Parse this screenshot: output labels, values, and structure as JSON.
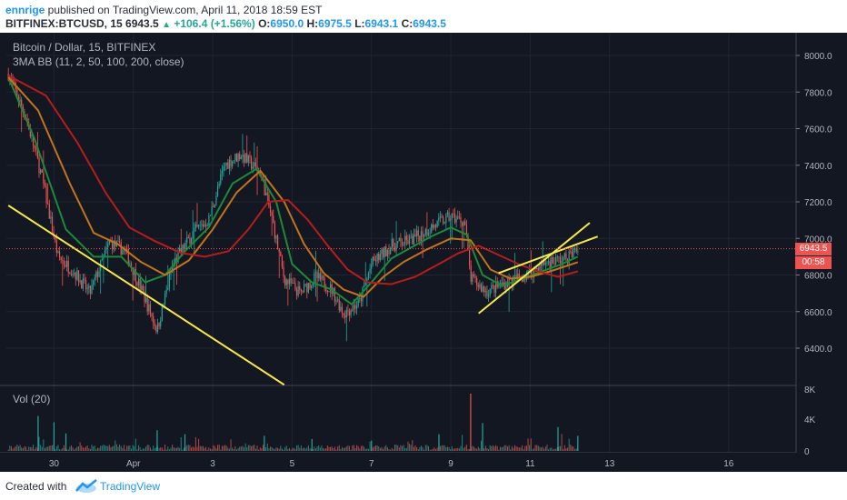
{
  "header": {
    "author": "ennrige",
    "published_text": " published on TradingView.com, April 11, 2018 18:59 EST",
    "symbol": "BITFINEX:BTCUSD, 15",
    "last_price": "6943.5",
    "change": "+106.4 (+1.56%)",
    "open_label": "O:",
    "open_value": "6950.0",
    "high_label": "H:",
    "high_value": "6975.5",
    "low_label": "L:",
    "low_value": "6943.1",
    "close_label": "C:",
    "close_value": "6943.5"
  },
  "legend": {
    "title": "Bitcoin / Dollar, 15, BITFINEX",
    "indicator": "3MA BB (11, 2, 50, 100, 200, close)",
    "volume": "Vol (20)"
  },
  "price_tag": {
    "value": "6943.5",
    "countdown": "00:58"
  },
  "footer": {
    "created_with": "Created with",
    "brand": "TradingView"
  },
  "colors": {
    "background": "#131722",
    "grid": "#1f2430",
    "up": "#26a69a",
    "down": "#ef5350",
    "ma_fast": "#1b8a3a",
    "ma_mid": "#c2741c",
    "ma_slow": "#b71c1c",
    "trendline": "#f5e94a",
    "price_line": "#ef5350"
  },
  "chart_data": {
    "type": "candlestick",
    "title": "Bitcoin / Dollar, 15, BITFINEX",
    "x_ticks": [
      "30",
      "Apr",
      "3",
      "5",
      "7",
      "9",
      "11",
      "13",
      "16"
    ],
    "x_tick_days": [
      30,
      32,
      34,
      36,
      38,
      40,
      42,
      44,
      47
    ],
    "x_range_days": [
      28.8,
      48.7
    ],
    "y_ticks": [
      "6400.0",
      "6600.0",
      "6800.0",
      "7000.0",
      "7200.0",
      "7400.0",
      "7600.0",
      "7800.0",
      "8000.0"
    ],
    "y_range": [
      6200,
      8050
    ],
    "volume_ticks": [
      "0",
      "4K",
      "8K"
    ],
    "volume_range": [
      0,
      8000
    ],
    "last_price": 6943.5,
    "price_path": [
      [
        28.85,
        7900
      ],
      [
        29.3,
        7660
      ],
      [
        29.7,
        7330
      ],
      [
        30.1,
        6900
      ],
      [
        30.5,
        6820
      ],
      [
        30.9,
        6700
      ],
      [
        31.4,
        6980
      ],
      [
        31.8,
        6930
      ],
      [
        32.2,
        6720
      ],
      [
        32.6,
        6500
      ],
      [
        33.0,
        6860
      ],
      [
        33.5,
        7030
      ],
      [
        33.9,
        7100
      ],
      [
        34.3,
        7400
      ],
      [
        34.7,
        7460
      ],
      [
        35.2,
        7360
      ],
      [
        35.5,
        7100
      ],
      [
        35.8,
        6780
      ],
      [
        36.2,
        6700
      ],
      [
        36.6,
        6790
      ],
      [
        37.0,
        6720
      ],
      [
        37.3,
        6590
      ],
      [
        37.7,
        6650
      ],
      [
        38.0,
        6860
      ],
      [
        38.5,
        6960
      ],
      [
        39.0,
        6990
      ],
      [
        39.5,
        7060
      ],
      [
        40.0,
        7120
      ],
      [
        40.35,
        7090
      ],
      [
        40.5,
        6780
      ],
      [
        40.9,
        6710
      ],
      [
        41.4,
        6760
      ],
      [
        41.9,
        6800
      ],
      [
        42.4,
        6870
      ],
      [
        42.9,
        6890
      ],
      [
        43.2,
        6943.5
      ]
    ],
    "series": [
      {
        "name": "MA 50",
        "color": "ma_fast",
        "points": [
          [
            28.85,
            7880
          ],
          [
            29.5,
            7550
          ],
          [
            30.3,
            7050
          ],
          [
            31.0,
            6900
          ],
          [
            31.7,
            6900
          ],
          [
            32.3,
            6760
          ],
          [
            32.8,
            6800
          ],
          [
            33.3,
            6930
          ],
          [
            33.9,
            7060
          ],
          [
            34.5,
            7300
          ],
          [
            35.1,
            7380
          ],
          [
            35.6,
            7200
          ],
          [
            36.0,
            6860
          ],
          [
            36.5,
            6760
          ],
          [
            37.0,
            6720
          ],
          [
            37.5,
            6640
          ],
          [
            38.0,
            6760
          ],
          [
            38.5,
            6890
          ],
          [
            39.0,
            6950
          ],
          [
            39.5,
            7010
          ],
          [
            40.0,
            7060
          ],
          [
            40.4,
            7020
          ],
          [
            40.8,
            6800
          ],
          [
            41.3,
            6740
          ],
          [
            41.8,
            6780
          ],
          [
            42.3,
            6820
          ],
          [
            42.8,
            6860
          ],
          [
            43.2,
            6900
          ]
        ]
      },
      {
        "name": "MA 100",
        "color": "ma_mid",
        "points": [
          [
            28.85,
            7880
          ],
          [
            29.6,
            7700
          ],
          [
            30.4,
            7300
          ],
          [
            31.0,
            7030
          ],
          [
            31.6,
            6970
          ],
          [
            32.2,
            6870
          ],
          [
            32.8,
            6800
          ],
          [
            33.4,
            6880
          ],
          [
            34.0,
            7050
          ],
          [
            34.6,
            7250
          ],
          [
            35.2,
            7370
          ],
          [
            35.8,
            7200
          ],
          [
            36.3,
            6970
          ],
          [
            36.8,
            6810
          ],
          [
            37.3,
            6720
          ],
          [
            37.8,
            6680
          ],
          [
            38.3,
            6790
          ],
          [
            38.8,
            6870
          ],
          [
            39.4,
            6940
          ],
          [
            40.0,
            7000
          ],
          [
            40.5,
            6990
          ],
          [
            41.0,
            6830
          ],
          [
            41.5,
            6780
          ],
          [
            42.0,
            6790
          ],
          [
            42.5,
            6820
          ],
          [
            43.2,
            6870
          ]
        ]
      },
      {
        "name": "MA 200",
        "color": "ma_slow",
        "points": [
          [
            28.85,
            7890
          ],
          [
            29.8,
            7780
          ],
          [
            30.6,
            7520
          ],
          [
            31.3,
            7250
          ],
          [
            31.9,
            7060
          ],
          [
            32.5,
            6990
          ],
          [
            33.2,
            6920
          ],
          [
            33.8,
            6900
          ],
          [
            34.4,
            6930
          ],
          [
            34.9,
            7050
          ],
          [
            35.4,
            7200
          ],
          [
            35.9,
            7210
          ],
          [
            36.4,
            7100
          ],
          [
            36.9,
            6960
          ],
          [
            37.4,
            6830
          ],
          [
            37.9,
            6760
          ],
          [
            38.5,
            6750
          ],
          [
            39.1,
            6790
          ],
          [
            39.7,
            6860
          ],
          [
            40.2,
            6920
          ],
          [
            40.7,
            6960
          ],
          [
            41.2,
            6910
          ],
          [
            41.7,
            6860
          ],
          [
            42.2,
            6820
          ],
          [
            42.7,
            6790
          ],
          [
            43.2,
            6820
          ]
        ]
      }
    ],
    "trendlines": [
      [
        [
          28.85,
          7180
        ],
        [
          35.8,
          6200
        ]
      ],
      [
        [
          40.7,
          6590
        ],
        [
          43.5,
          7085
        ]
      ],
      [
        [
          41.2,
          6810
        ],
        [
          43.7,
          7010
        ]
      ]
    ],
    "volume_spikes": [
      [
        29.6,
        4400
      ],
      [
        30.0,
        3600
      ],
      [
        30.3,
        2200
      ],
      [
        32.6,
        2600
      ],
      [
        33.3,
        2100
      ],
      [
        35.3,
        1900
      ],
      [
        36.5,
        1500
      ],
      [
        38.0,
        1300
      ],
      [
        39.7,
        2100
      ],
      [
        40.5,
        7200
      ],
      [
        40.8,
        3500
      ],
      [
        42.7,
        3000
      ],
      [
        43.2,
        1900
      ]
    ]
  }
}
